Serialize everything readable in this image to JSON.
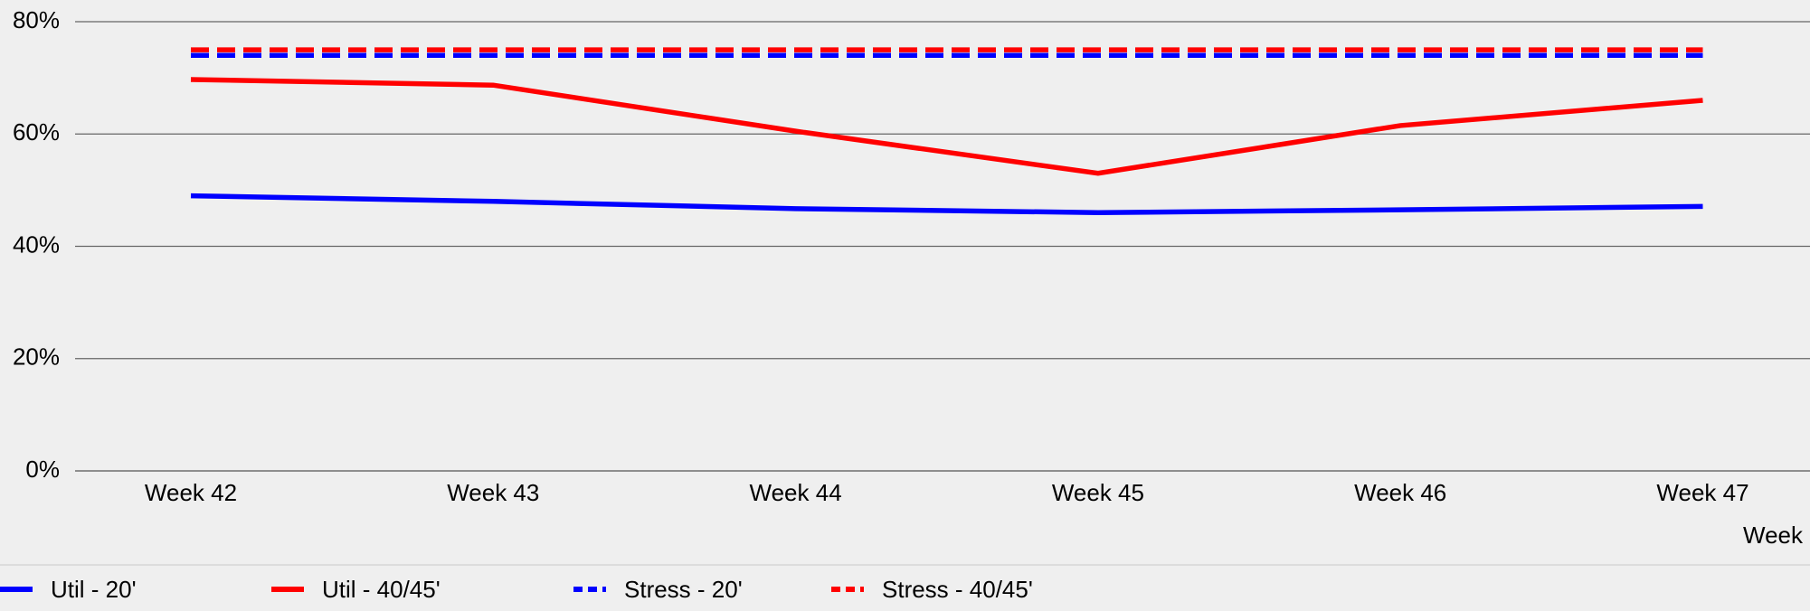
{
  "chart_data": {
    "type": "line",
    "x_label": "Week",
    "categories": [
      "Week 42",
      "Week 43",
      "Week 44",
      "Week 45",
      "Week 46",
      "Week 47"
    ],
    "series": [
      {
        "name": "Util - 20'",
        "color": "#0000ff",
        "dashed": false,
        "values": [
          49,
          48,
          46.7,
          46,
          46.5,
          47.1
        ]
      },
      {
        "name": "Util - 40/45'",
        "color": "#ff0000",
        "dashed": false,
        "values": [
          69.7,
          68.7,
          60.5,
          53,
          61.5,
          66
        ]
      },
      {
        "name": "Stress - 20'",
        "color": "#0000ff",
        "dashed": true,
        "values": [
          74,
          74,
          74,
          74,
          74,
          74
        ]
      },
      {
        "name": "Stress - 40/45'",
        "color": "#ff0000",
        "dashed": true,
        "values": [
          75,
          75,
          75,
          75,
          75,
          75
        ]
      }
    ],
    "ylim": [
      0,
      80
    ],
    "yticks": [
      {
        "value": 0,
        "label": "0%"
      },
      {
        "value": 20,
        "label": "20%"
      },
      {
        "value": 40,
        "label": "40%"
      },
      {
        "value": 60,
        "label": "60%"
      },
      {
        "value": 80,
        "label": "80%"
      }
    ],
    "grid": true,
    "legend": "bottom"
  }
}
